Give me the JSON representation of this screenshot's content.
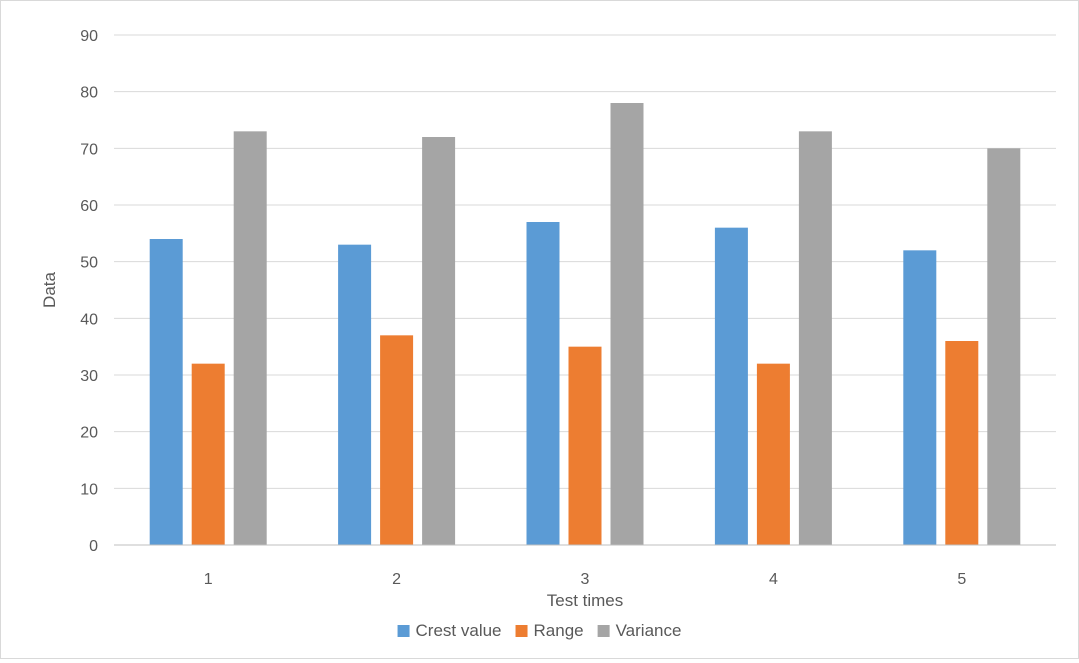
{
  "chart_data": {
    "type": "bar",
    "title": "",
    "xlabel": "Test times",
    "ylabel": "Data",
    "categories": [
      "1",
      "2",
      "3",
      "4",
      "5"
    ],
    "series": [
      {
        "name": "Crest value",
        "color": "#5b9bd5",
        "values": [
          54,
          53,
          57,
          56,
          52
        ]
      },
      {
        "name": "Range",
        "color": "#ed7d31",
        "values": [
          32,
          37,
          35,
          32,
          36
        ]
      },
      {
        "name": "Variance",
        "color": "#a5a5a5",
        "values": [
          73,
          72,
          78,
          73,
          70
        ]
      }
    ],
    "ylim": [
      0,
      90
    ],
    "yticks": [
      "0",
      "10",
      "20",
      "30",
      "40",
      "50",
      "60",
      "70",
      "80",
      "90"
    ],
    "grid": true,
    "legend": "bottom-center"
  }
}
